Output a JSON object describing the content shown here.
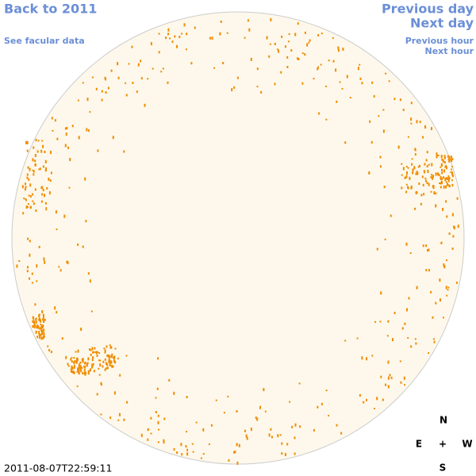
{
  "navigation": {
    "back_year": "Back to 2011",
    "facular_data": "See facular data",
    "previous_day": "Previous day",
    "next_day": "Next day",
    "previous_hour": "Previous hour",
    "next_hour": "Next hour"
  },
  "timestamp": "2011-08-07T22:59:11",
  "compass": {
    "north": "N",
    "east": "E",
    "center": "+",
    "west": "W",
    "south": "S"
  }
}
